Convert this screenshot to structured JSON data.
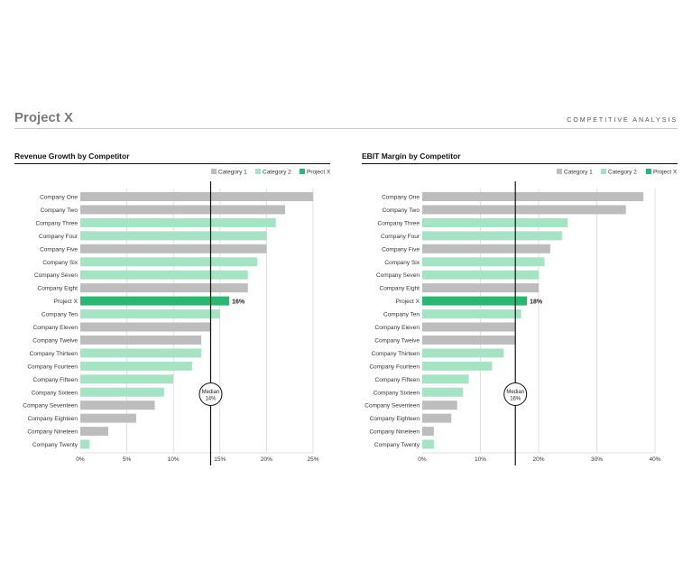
{
  "header": {
    "title": "Project X",
    "subtitle": "COMPETITIVE ANALYSIS"
  },
  "colors": {
    "category_1": "#bdbdbd",
    "category_2": "#a6e3c5",
    "project_x": "#2bb673"
  },
  "chart_data": [
    {
      "type": "bar",
      "orientation": "horizontal",
      "title": "Revenue Growth by Competitor",
      "legend": [
        "Category 1",
        "Category 2",
        "Project X"
      ],
      "legend_position": "top-right",
      "categories": [
        "Company One",
        "Company Two",
        "Company Three",
        "Company Four",
        "Company Five",
        "Company Six",
        "Company Seven",
        "Company Eight",
        "Project X",
        "Company Ten",
        "Company Eleven",
        "Company Twelve",
        "Company Thirteen",
        "Company Fourteen",
        "Company Fifteen",
        "Company Sixteen",
        "Company Seventeen",
        "Company Eighteen",
        "Company Nineteen",
        "Company Twenty"
      ],
      "values": [
        25,
        22,
        21,
        20,
        20,
        19,
        18,
        18,
        16,
        15,
        14,
        13,
        13,
        12,
        10,
        9,
        8,
        6,
        3,
        1
      ],
      "groups": [
        "Category 1",
        "Category 1",
        "Category 2",
        "Category 2",
        "Category 1",
        "Category 2",
        "Category 2",
        "Category 1",
        "Project X",
        "Category 2",
        "Category 1",
        "Category 1",
        "Category 2",
        "Category 2",
        "Category 2",
        "Category 2",
        "Category 1",
        "Category 1",
        "Category 1",
        "Category 2"
      ],
      "highlight_label": "16%",
      "xlim": [
        0,
        25
      ],
      "xticks": [
        "0%",
        "5%",
        "10%",
        "15%",
        "20%",
        "25%"
      ],
      "tick_values": [
        0,
        5,
        10,
        15,
        20,
        25
      ],
      "median": {
        "value": 14,
        "label": "Median",
        "value_label": "14%"
      },
      "grid": true
    },
    {
      "type": "bar",
      "orientation": "horizontal",
      "title": "EBIT Margin by Competitor",
      "legend": [
        "Category 1",
        "Category 2",
        "Project X"
      ],
      "legend_position": "top-right",
      "categories": [
        "Company One",
        "Company Two",
        "Company Three",
        "Company Four",
        "Company Five",
        "Company Six",
        "Company Seven",
        "Company Eight",
        "Project X",
        "Company Ten",
        "Company Eleven",
        "Company Twelve",
        "Company Thirteen",
        "Company Fourteen",
        "Company Fifteen",
        "Company Sixteen",
        "Company Seventeen",
        "Company Eighteen",
        "Company Nineteen",
        "Company Twenty"
      ],
      "values": [
        38,
        35,
        25,
        24,
        22,
        21,
        20,
        20,
        18,
        17,
        16,
        16,
        14,
        12,
        8,
        7,
        6,
        5,
        2,
        2
      ],
      "groups": [
        "Category 1",
        "Category 1",
        "Category 2",
        "Category 2",
        "Category 1",
        "Category 2",
        "Category 2",
        "Category 1",
        "Project X",
        "Category 2",
        "Category 1",
        "Category 1",
        "Category 2",
        "Category 2",
        "Category 2",
        "Category 2",
        "Category 1",
        "Category 1",
        "Category 1",
        "Category 2"
      ],
      "highlight_label": "18%",
      "xlim": [
        0,
        40
      ],
      "xticks": [
        "0%",
        "10%",
        "20%",
        "30%",
        "40%"
      ],
      "tick_values": [
        0,
        10,
        20,
        30,
        40
      ],
      "median": {
        "value": 16,
        "label": "Median",
        "value_label": "16%"
      },
      "grid": true
    }
  ]
}
